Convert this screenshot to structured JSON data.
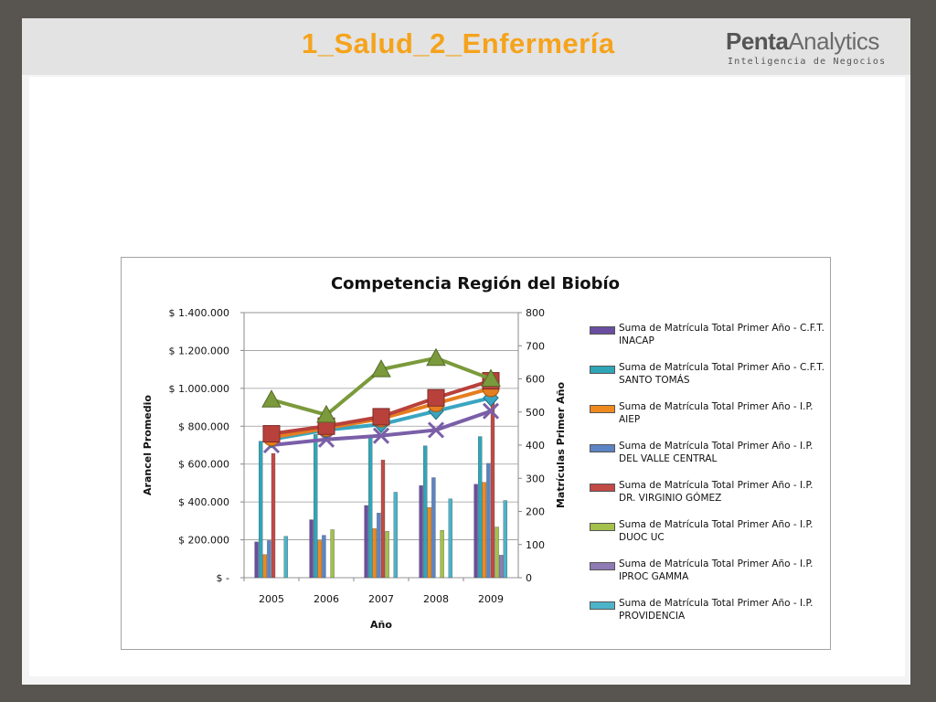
{
  "slide": {
    "title": "1_Salud_2_Enfermería",
    "logo_bold": "Penta",
    "logo_rest": "Analytics",
    "logo_subtitle": "Inteligencia de Negocios"
  },
  "colors": {
    "line_purple": "#7a5fa8",
    "line_teal": "#3aa5c1",
    "line_orange": "#e57e1f",
    "line_red": "#b8413c",
    "line_green": "#7b9a3b"
  },
  "chart_data": {
    "type": "bar",
    "title": "Competencia Región del Biobío",
    "xlabel": "Año",
    "ylabel": "Arancel Promedio",
    "y2label": "Matrículas Primer Año",
    "categories": [
      "2005",
      "2006",
      "2007",
      "2008",
      "2009"
    ],
    "ylim": [
      0,
      1400000
    ],
    "y2lim": [
      0,
      800
    ],
    "yticks": [
      "$ -",
      "$ 200.000",
      "$ 400.000",
      "$ 600.000",
      "$ 800.000",
      "$ 1.000.000",
      "$ 1.200.000",
      "$ 1.400.000"
    ],
    "y2ticks": [
      "0",
      "100",
      "200",
      "300",
      "400",
      "500",
      "600",
      "700",
      "800"
    ],
    "legend_position": "right",
    "series": [
      {
        "name": "Suma de Matrícula Total Primer Año - C.F.T. INACAP",
        "color": "#6a4ea0",
        "values": [
          108,
          175,
          218,
          278,
          282
        ]
      },
      {
        "name": "Suma de Matrícula Total Primer Año - C.F.T. SANTO TOMÁS",
        "color": "#2ea6b8",
        "values": [
          412,
          432,
          422,
          398,
          426
        ]
      },
      {
        "name": "Suma de Matrícula Total Primer Año - I.P. AIEP",
        "color": "#ee8a1d",
        "values": [
          70,
          112,
          148,
          212,
          288
        ]
      },
      {
        "name": "Suma de Matrícula Total Primer Año - I.P. DEL VALLE CENTRAL",
        "color": "#5b84c4",
        "values": [
          112,
          128,
          195,
          302,
          345
        ]
      },
      {
        "name": "Suma de Matrícula Total Primer Año - I.P. DR. VIRGINIO GÓMEZ",
        "color": "#c24a45",
        "values": [
          375,
          0,
          355,
          0,
          590
        ]
      },
      {
        "name": "Suma de Matrícula Total Primer Año - I.P. DUOC UC",
        "color": "#a3c14b",
        "values": [
          0,
          145,
          140,
          143,
          153
        ]
      },
      {
        "name": "Suma de Matrícula Total Primer Año - I.P. IPROC GAMMA",
        "color": "#8e7bb5",
        "values": [
          0,
          0,
          0,
          0,
          68
        ]
      },
      {
        "name": "Suma de Matrícula Total Primer Año - I.P. PROVIDENCIA",
        "color": "#4cb3c9",
        "values": [
          125,
          0,
          258,
          238,
          233
        ]
      }
    ],
    "lines": [
      {
        "marker": "triangle",
        "color": "#7b9a3b",
        "values": [
          940000,
          860000,
          1100000,
          1160000,
          1050000
        ]
      },
      {
        "marker": "square",
        "color": "#b8413c",
        "values": [
          760000,
          800000,
          850000,
          950000,
          1040000
        ]
      },
      {
        "marker": "circle",
        "color": "#e57e1f",
        "values": [
          740000,
          790000,
          840000,
          920000,
          1000000
        ]
      },
      {
        "marker": "diamond",
        "color": "#3aa5c1",
        "values": [
          730000,
          780000,
          810000,
          880000,
          950000
        ]
      },
      {
        "marker": "x",
        "color": "#7a5fa8",
        "values": [
          700000,
          730000,
          750000,
          780000,
          880000
        ]
      }
    ]
  }
}
